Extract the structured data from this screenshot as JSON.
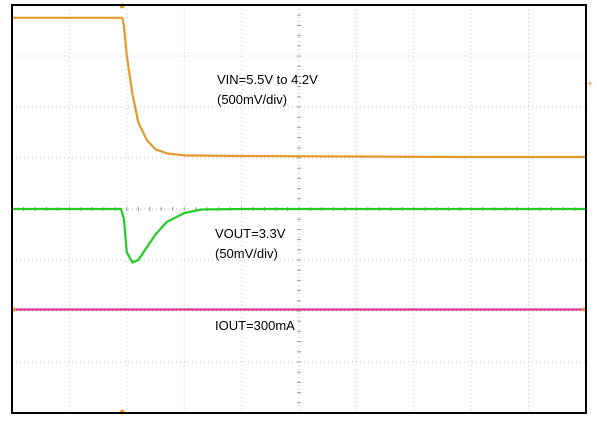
{
  "chart_data": {
    "type": "line",
    "title": "",
    "xlabel": "",
    "ylabel": "",
    "grid": true,
    "divisions": {
      "x": 10,
      "y": 8
    },
    "xlim": [
      0,
      10
    ],
    "ylim": [
      0,
      8
    ],
    "series": [
      {
        "name": "VIN",
        "color": "#e39a2b",
        "x": [
          0,
          1.92,
          1.95,
          2.0,
          2.1,
          2.2,
          2.35,
          2.5,
          2.7,
          3.0,
          4.0,
          6.0,
          8.0,
          10.0
        ],
        "values": [
          7.75,
          7.75,
          7.6,
          7.0,
          6.25,
          5.7,
          5.35,
          5.17,
          5.09,
          5.05,
          5.04,
          5.03,
          5.02,
          5.02
        ],
        "label_line1": "VIN=5.5V to 4.2V",
        "label_line2": "(500mV/div)"
      },
      {
        "name": "VOUT",
        "color": "#22cc22",
        "x": [
          0,
          1.0,
          1.9,
          1.95,
          2.0,
          2.1,
          2.2,
          2.35,
          2.5,
          2.7,
          3.0,
          3.3,
          4.0,
          6.0,
          8.0,
          10.0
        ],
        "values": [
          4.0,
          4.0,
          4.0,
          3.8,
          3.15,
          2.95,
          3.0,
          3.25,
          3.5,
          3.75,
          3.92,
          3.99,
          4.0,
          4.0,
          4.0,
          4.0
        ],
        "label_line1": "VOUT=3.3V",
        "label_line2": "(50mV/div)"
      },
      {
        "name": "IOUT",
        "color": "#d9368e",
        "x": [
          0,
          10
        ],
        "values": [
          2.03,
          2.03
        ],
        "label_line1": "IOUT=300mA",
        "label_line2": ""
      }
    ]
  }
}
